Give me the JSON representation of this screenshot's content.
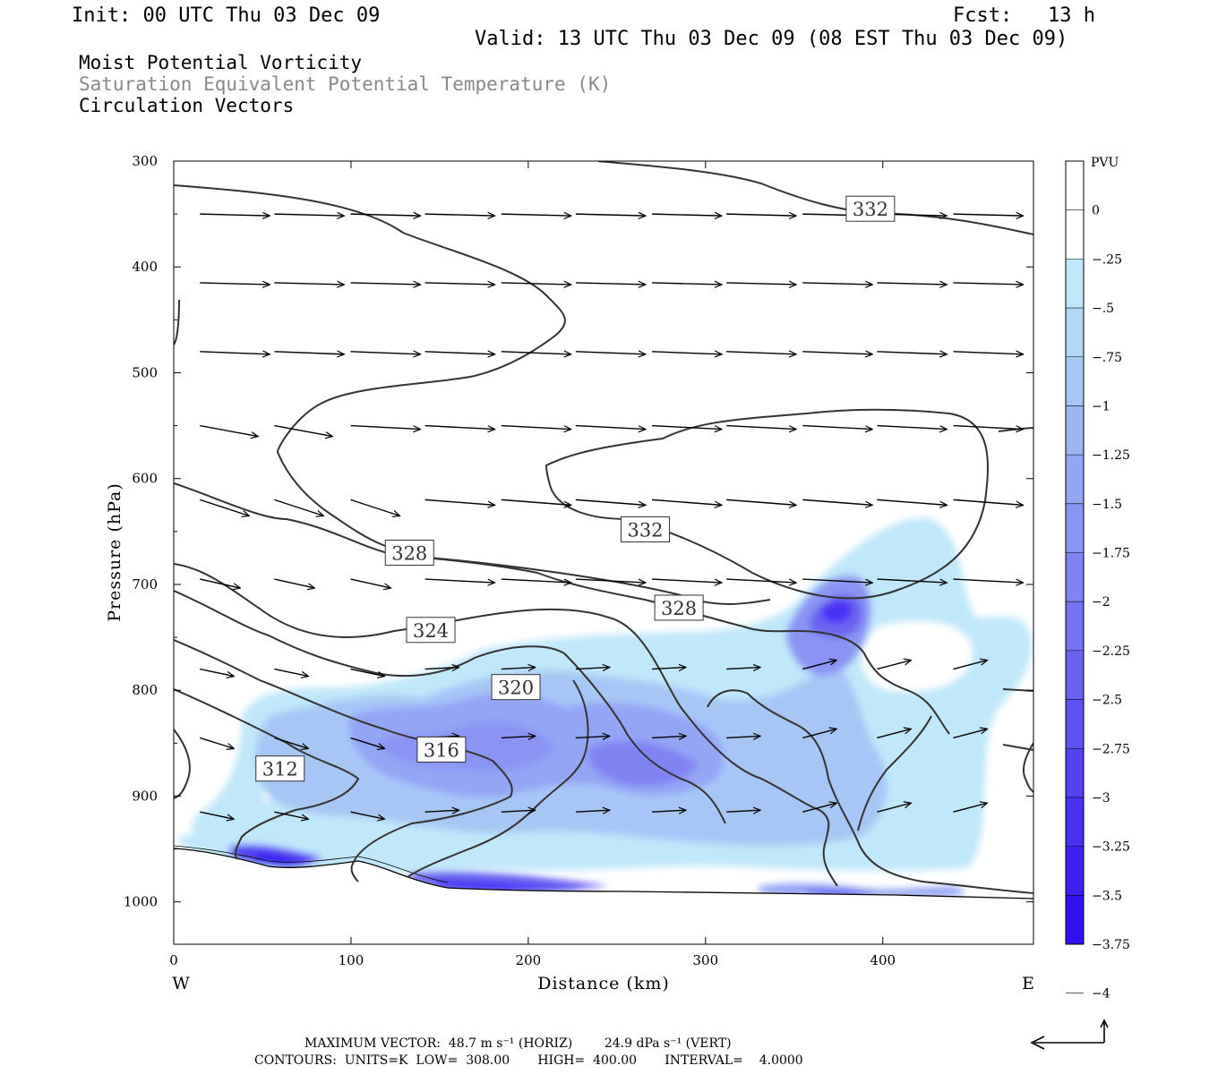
{
  "header": {
    "init": "Init: 00 UTC Thu 03 Dec 09",
    "fcst": "Fcst:   13 h",
    "valid": "Valid: 13 UTC Thu 03 Dec 09 (08 EST Thu 03 Dec 09)",
    "field1": "Moist Potential Vorticity",
    "field2": "Saturation Equivalent Potential Temperature (K)",
    "field3": "Circulation Vectors"
  },
  "colors": {
    "field2_text": "#888888",
    "contour": "#333333",
    "pv_scale": [
      "#ffffff",
      "#ffffff",
      "#bfe8fb",
      "#b0d8f8",
      "#a6c7f6",
      "#9cb6f5",
      "#93a6f4",
      "#8a95f3",
      "#8084f3",
      "#7574f2",
      "#6a63f2",
      "#5f52f2",
      "#5442f2",
      "#4931f2",
      "#3d20f2",
      "#2f0ff4"
    ]
  },
  "footer": {
    "max_vector": "MAXIMUM VECTOR:  48.7 m s⁻¹ (HORIZ)        24.9 dPa s⁻¹ (VERT)",
    "contours": "CONTOURS:  UNITS=K  LOW=  308.00       HIGH=  400.00       INTERVAL=    4.0000"
  },
  "chart_data": {
    "type": "cross-section",
    "xlabel": "Distance (km)",
    "ylabel": "Pressure (hPa)",
    "xlim": [
      0,
      485
    ],
    "ylim": [
      1040,
      300
    ],
    "xticks": [
      "0",
      "100",
      "200",
      "300",
      "400"
    ],
    "yticks": [
      "300",
      "400",
      "500",
      "600",
      "700",
      "800",
      "900",
      "1000"
    ],
    "west_label": "W",
    "east_label": "E",
    "colorbar": {
      "unit": "PVU",
      "levels": [
        "0",
        "-.25",
        "-.5",
        "-.75",
        "-1",
        "-1.25",
        "-1.5",
        "-1.75",
        "-2",
        "-2.25",
        "-2.5",
        "-2.75",
        "-3",
        "-3.25",
        "-3.5",
        "-3.75",
        "-4"
      ]
    },
    "contour_labels": [
      {
        "text": "332",
        "x": 393,
        "p": 345
      },
      {
        "text": "332",
        "x": 266,
        "p": 648
      },
      {
        "text": "328",
        "x": 133,
        "p": 670
      },
      {
        "text": "328",
        "x": 285,
        "p": 722
      },
      {
        "text": "324",
        "x": 145,
        "p": 743
      },
      {
        "text": "320",
        "x": 193,
        "p": 797
      },
      {
        "text": "316",
        "x": 151,
        "p": 856
      },
      {
        "text": "312",
        "x": 60,
        "p": 874
      }
    ],
    "pv_minima": [
      {
        "x": 375,
        "p": 720,
        "pvu": -2.75
      },
      {
        "x": 70,
        "p": 962,
        "pvu": -3.75
      },
      {
        "x": 195,
        "p": 987,
        "pvu": -3.5
      },
      {
        "x": 165,
        "p": 982,
        "pvu": -3.0
      },
      {
        "x": 380,
        "p": 990,
        "pvu": -2.5
      },
      {
        "x": 435,
        "p": 990,
        "pvu": -2.25
      },
      {
        "x": 265,
        "p": 870,
        "pvu": -2.0
      },
      {
        "x": 145,
        "p": 860,
        "pvu": -1.75
      }
    ],
    "vectors": {
      "max_horizontal": "48.7 m s-1",
      "max_vertical": "24.9 dPa s-1"
    }
  }
}
